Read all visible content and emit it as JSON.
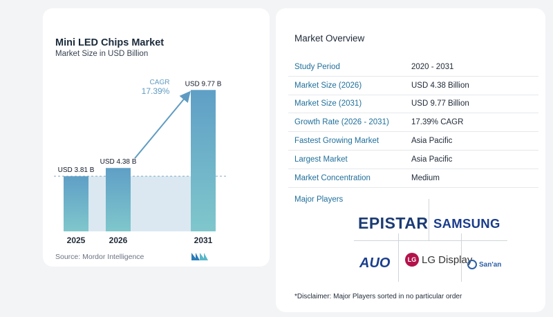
{
  "chart_data": {
    "type": "bar",
    "title": "Mini LED Chips Market",
    "subtitle": "Market Size in USD Billion",
    "categories": [
      "2025",
      "2026",
      "2031"
    ],
    "values": [
      3.81,
      4.38,
      9.77
    ],
    "data_labels": [
      "USD 3.81 B",
      "USD 4.38 B",
      "USD 9.77 B"
    ],
    "ylim": [
      0,
      10.5
    ],
    "reference_line_value": 3.81,
    "cagr_label": "CAGR",
    "cagr_value": "17.39%",
    "grid": false,
    "colors": {
      "bar_top": "#5f9fc6",
      "bar_bottom": "#7fc7cc",
      "band": "#dbe8f1",
      "arrow": "#5f9bc1",
      "cagr_text": "#5f9bc1"
    }
  },
  "source": "Source: Mordor Intelligence",
  "overview": {
    "title": "Market Overview",
    "rows": [
      {
        "key": "Study Period",
        "value": "2020 - 2031"
      },
      {
        "key": "Market Size (2026)",
        "value": "USD 4.38 Billion"
      },
      {
        "key": "Market Size (2031)",
        "value": "USD 9.77 Billion"
      },
      {
        "key": "Growth Rate (2026 - 2031)",
        "value": "17.39% CAGR"
      },
      {
        "key": "Fastest Growing Market",
        "value": "Asia Pacific"
      },
      {
        "key": "Largest Market",
        "value": "Asia Pacific"
      },
      {
        "key": "Market Concentration",
        "value": "Medium"
      }
    ]
  },
  "players": {
    "title": "Major Players",
    "logos": [
      "EPISTAR",
      "SAMSUNG",
      "AUO",
      "LG Display",
      "San'an"
    ],
    "lg_mark": "LG"
  },
  "disclaimer": "*Disclaimer: Major Players sorted in no particular order"
}
